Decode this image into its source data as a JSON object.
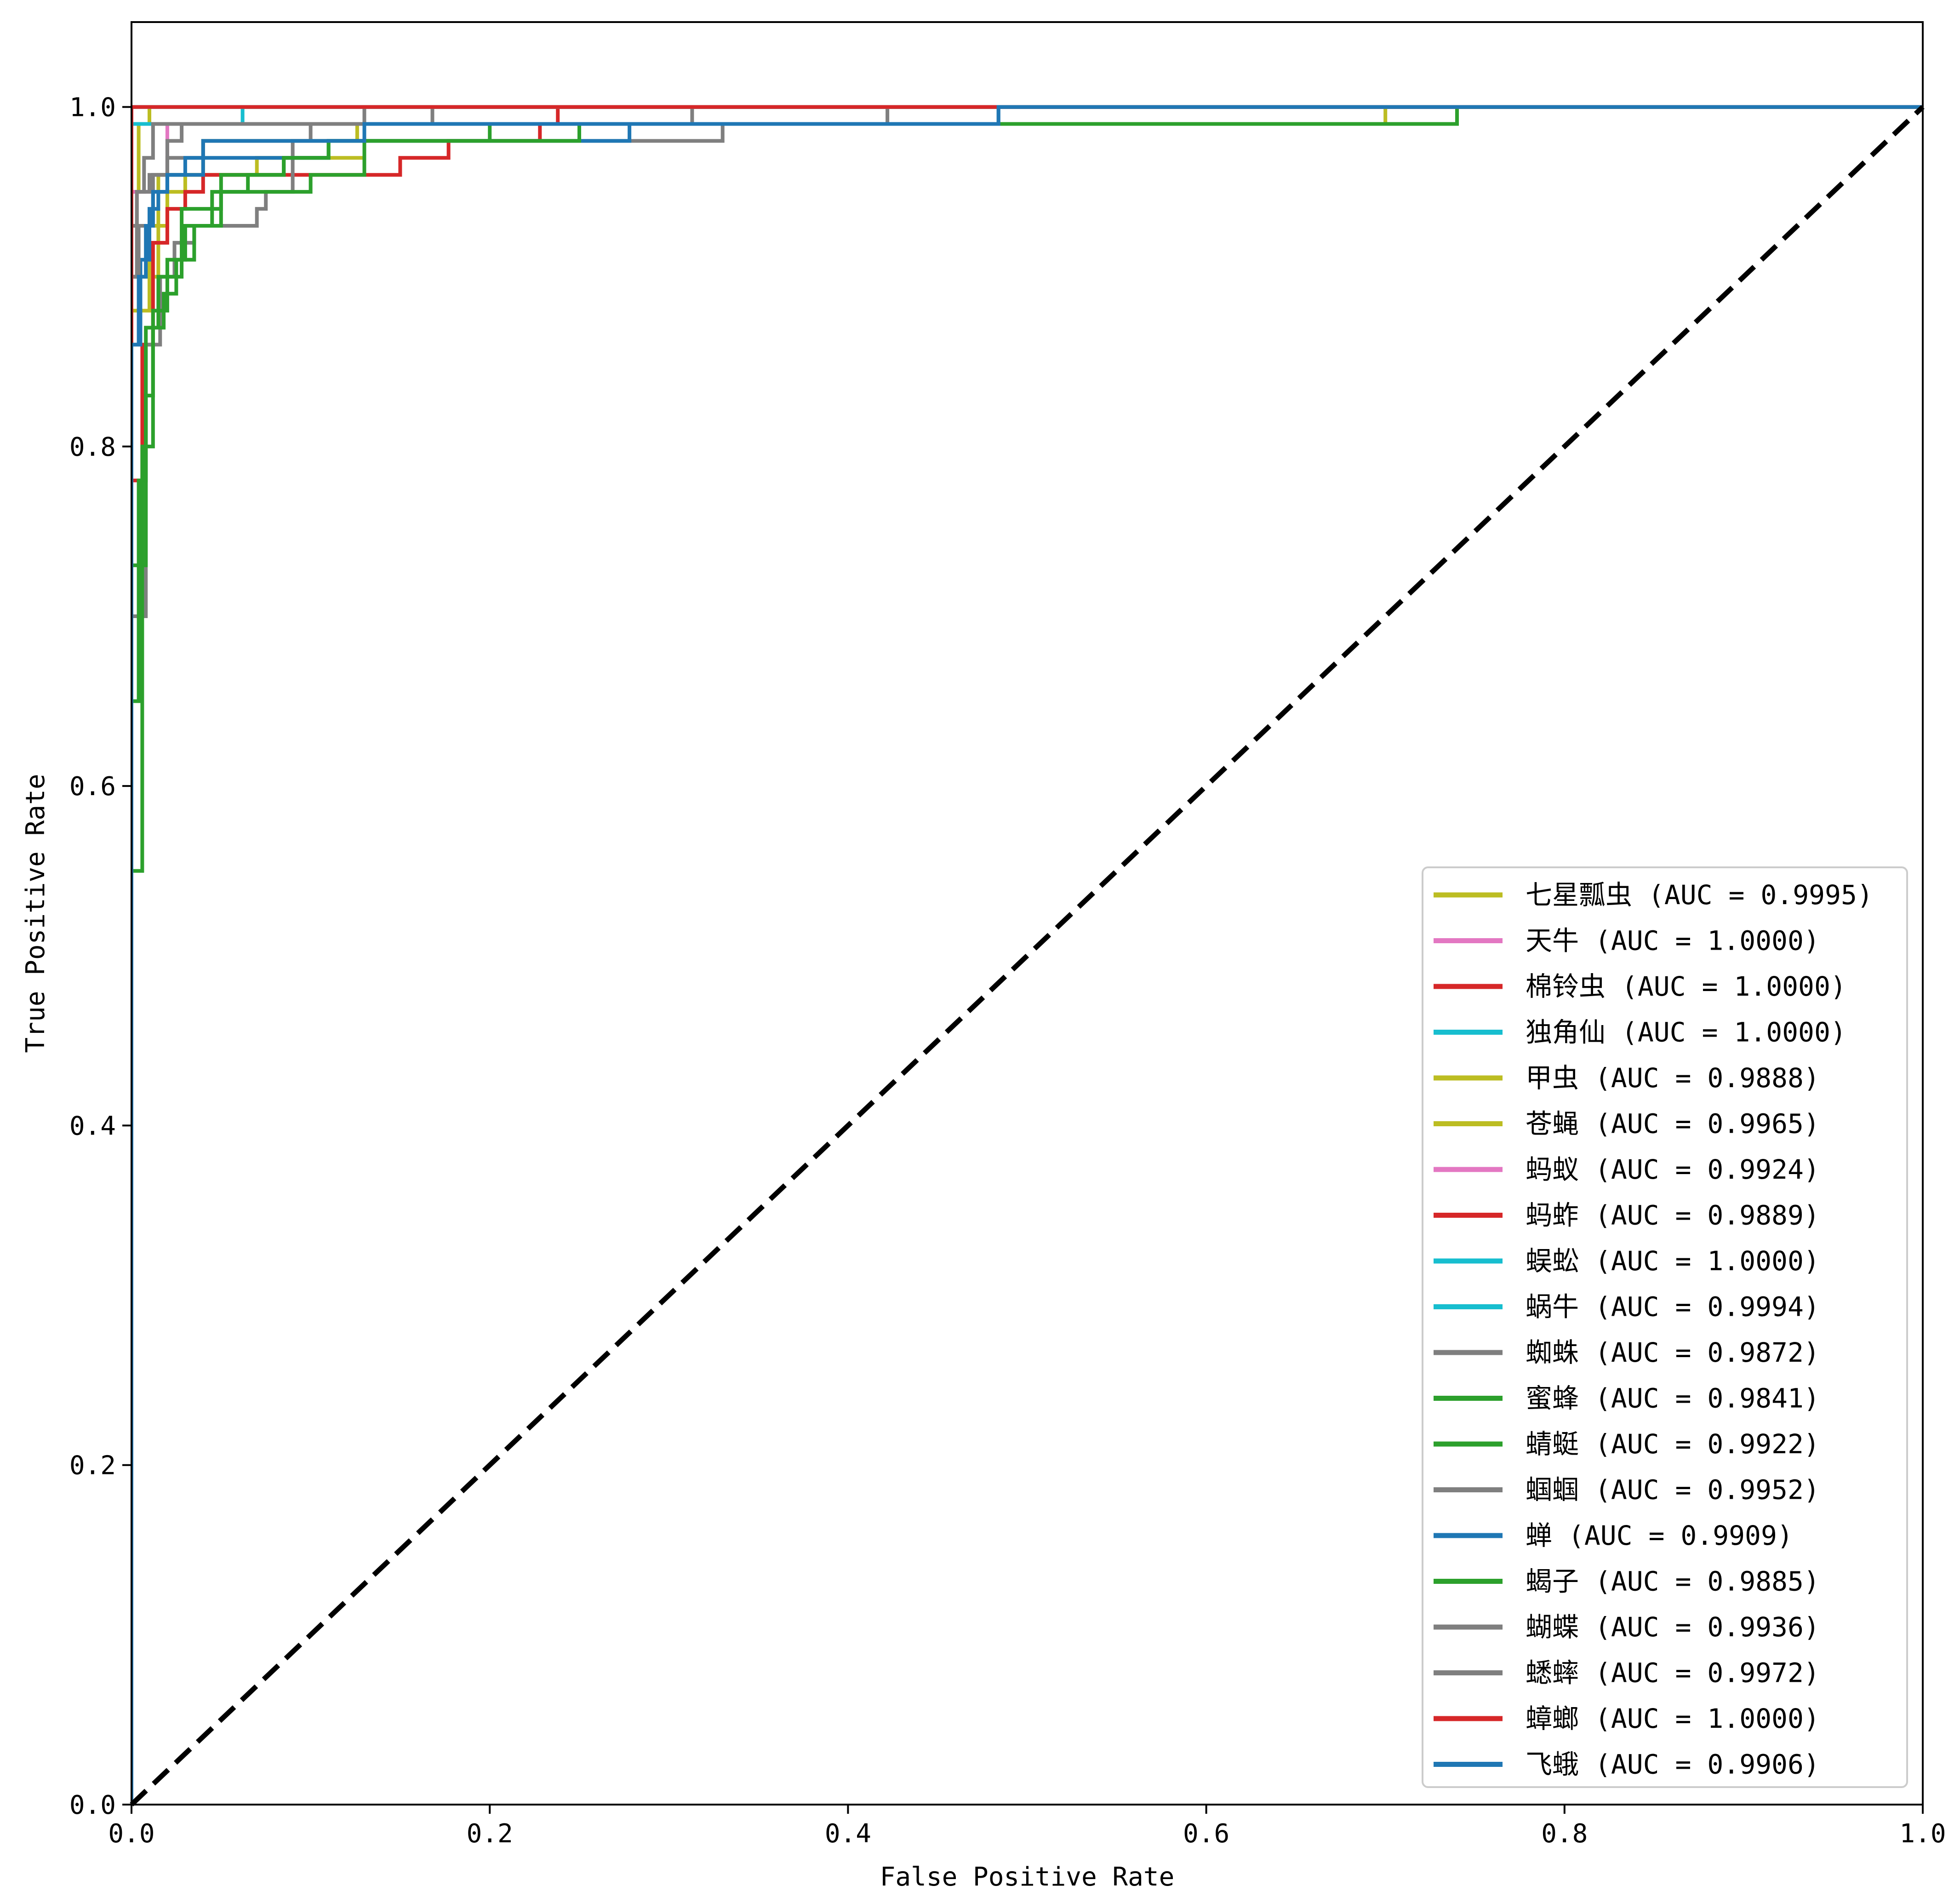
{
  "chart_data": {
    "type": "line",
    "title": "",
    "xlabel": "False Positive Rate",
    "ylabel": "True Positive Rate",
    "xlim": [
      0.0,
      1.0
    ],
    "ylim": [
      0.0,
      1.05
    ],
    "xticks": [
      "0.0",
      "0.2",
      "0.4",
      "0.6",
      "0.8",
      "1.0"
    ],
    "yticks": [
      "0.0",
      "0.2",
      "0.4",
      "0.6",
      "0.8",
      "1.0"
    ],
    "grid": false,
    "legend_position": "lower-right",
    "diagonal": {
      "x": [
        0,
        1
      ],
      "y": [
        0,
        1
      ],
      "style": "dashed",
      "color": "#000000"
    },
    "series": [
      {
        "name": "七星瓢虫 (AUC = 0.9995)",
        "color": "#bcbd22",
        "x": [
          0,
          0,
          0.004,
          0.004,
          0.01,
          0.01,
          1.0
        ],
        "y": [
          0,
          0.95,
          0.95,
          0.99,
          0.99,
          1.0,
          1.0
        ]
      },
      {
        "name": "天牛 (AUC = 1.0000)",
        "color": "#e377c2",
        "x": [
          0,
          0,
          1.0
        ],
        "y": [
          0,
          1.0,
          1.0
        ]
      },
      {
        "name": "棉铃虫 (AUC = 1.0000)",
        "color": "#d62728",
        "x": [
          0,
          0,
          1.0
        ],
        "y": [
          0,
          1.0,
          1.0
        ]
      },
      {
        "name": "独角仙 (AUC = 1.0000)",
        "color": "#17becf",
        "x": [
          0,
          0,
          1.0
        ],
        "y": [
          0,
          1.0,
          1.0
        ]
      },
      {
        "name": "甲虫 (AUC = 0.9888)",
        "color": "#bcbd22",
        "x": [
          0,
          0,
          0.01,
          0.01,
          0.02,
          0.02,
          0.03,
          0.03,
          0.07,
          0.07,
          0.13,
          0.13,
          0.74,
          0.74,
          1.0
        ],
        "y": [
          0,
          0.88,
          0.88,
          0.93,
          0.93,
          0.95,
          0.95,
          0.96,
          0.96,
          0.97,
          0.97,
          0.99,
          0.99,
          1.0,
          1.0
        ]
      },
      {
        "name": "苍蝇 (AUC = 0.9965)",
        "color": "#bcbd22",
        "x": [
          0,
          0,
          0.015,
          0.015,
          0.04,
          0.04,
          0.126,
          0.126,
          0.7,
          0.7,
          1.0
        ],
        "y": [
          0,
          0.9,
          0.9,
          0.96,
          0.96,
          0.98,
          0.98,
          0.99,
          0.99,
          1.0,
          1.0
        ]
      },
      {
        "name": "蚂蚁 (AUC = 0.9924)",
        "color": "#e377c2",
        "x": [
          0,
          0,
          0.02,
          0.02,
          0.74,
          0.74,
          1.0
        ],
        "y": [
          0,
          0.95,
          0.95,
          0.99,
          0.99,
          1.0,
          1.0
        ]
      },
      {
        "name": "蚂蚱 (AUC = 0.9889)",
        "color": "#d62728",
        "x": [
          0,
          0,
          0.006,
          0.006,
          0.012,
          0.012,
          0.02,
          0.02,
          0.03,
          0.03,
          0.04,
          0.04,
          0.15,
          0.15,
          0.177,
          0.177,
          0.228,
          0.228,
          0.238,
          0.238,
          1.0
        ],
        "y": [
          0,
          0.78,
          0.78,
          0.86,
          0.86,
          0.92,
          0.92,
          0.94,
          0.94,
          0.95,
          0.95,
          0.96,
          0.96,
          0.97,
          0.97,
          0.98,
          0.98,
          0.99,
          0.99,
          1.0,
          1.0
        ]
      },
      {
        "name": "蜈蚣 (AUC = 1.0000)",
        "color": "#17becf",
        "x": [
          0,
          0,
          1.0
        ],
        "y": [
          0,
          1.0,
          1.0
        ]
      },
      {
        "name": "蜗牛 (AUC = 0.9994)",
        "color": "#17becf",
        "x": [
          0,
          0,
          0.006,
          0.006,
          0.062,
          0.062,
          1.0
        ],
        "y": [
          0,
          0.99,
          0.99,
          0.99,
          0.99,
          1.0,
          1.0
        ]
      },
      {
        "name": "蜘蛛 (AUC = 0.9872)",
        "color": "#7f7f7f",
        "x": [
          0,
          0,
          0.008,
          0.008,
          0.016,
          0.016,
          0.024,
          0.024,
          0.035,
          0.035,
          0.07,
          0.07,
          0.075,
          0.075,
          0.09,
          0.09,
          0.33,
          0.33,
          0.422,
          0.422,
          1.0
        ],
        "y": [
          0,
          0.7,
          0.7,
          0.86,
          0.86,
          0.9,
          0.9,
          0.92,
          0.92,
          0.93,
          0.93,
          0.94,
          0.94,
          0.95,
          0.95,
          0.98,
          0.98,
          0.99,
          0.99,
          1.0,
          1.0
        ]
      },
      {
        "name": "蜜蜂 (AUC = 0.9841)",
        "color": "#2ca02c",
        "x": [
          0,
          0,
          0.004,
          0.004,
          0.008,
          0.008,
          0.012,
          0.012,
          0.018,
          0.018,
          0.025,
          0.025,
          0.035,
          0.035,
          0.045,
          0.045,
          0.1,
          0.1,
          0.13,
          0.13,
          0.555,
          0.555,
          0.74,
          0.74,
          1.0
        ],
        "y": [
          0,
          0.65,
          0.65,
          0.78,
          0.78,
          0.83,
          0.83,
          0.87,
          0.87,
          0.89,
          0.89,
          0.91,
          0.91,
          0.93,
          0.93,
          0.95,
          0.95,
          0.96,
          0.96,
          0.99,
          0.99,
          0.99,
          0.99,
          1.0,
          1.0
        ]
      },
      {
        "name": "蜻蜓 (AUC = 0.9922)",
        "color": "#2ca02c",
        "x": [
          0,
          0,
          0.008,
          0.008,
          0.015,
          0.015,
          0.028,
          0.028,
          0.05,
          0.05,
          0.085,
          0.085,
          0.11,
          0.11,
          0.2,
          0.2,
          0.48,
          0.48,
          0.74,
          0.74,
          1.0
        ],
        "y": [
          0,
          0.73,
          0.73,
          0.87,
          0.87,
          0.9,
          0.9,
          0.94,
          0.94,
          0.96,
          0.96,
          0.97,
          0.97,
          0.98,
          0.98,
          0.99,
          0.99,
          0.99,
          0.99,
          1.0,
          1.0
        ]
      },
      {
        "name": "蝈蝈 (AUC = 0.9952)",
        "color": "#7f7f7f",
        "x": [
          0,
          0,
          0.003,
          0.003,
          0.01,
          0.01,
          0.02,
          0.02,
          0.04,
          0.04,
          0.1,
          0.1,
          0.13,
          0.13,
          1.0
        ],
        "y": [
          0,
          0.9,
          0.9,
          0.95,
          0.95,
          0.96,
          0.96,
          0.97,
          0.97,
          0.98,
          0.98,
          0.99,
          0.99,
          1.0,
          1.0
        ]
      },
      {
        "name": "蝉 (AUC = 0.9909)",
        "color": "#1f77b4",
        "x": [
          0,
          0,
          0.005,
          0.005,
          0.01,
          0.01,
          0.015,
          0.015,
          0.02,
          0.02,
          0.04,
          0.04,
          0.075,
          0.075,
          0.11,
          0.11,
          0.13,
          0.13,
          0.278,
          0.278,
          0.484,
          0.484,
          1.0
        ],
        "y": [
          0,
          0.86,
          0.86,
          0.91,
          0.91,
          0.94,
          0.94,
          0.95,
          0.95,
          0.96,
          0.96,
          0.97,
          0.97,
          0.97,
          0.97,
          0.98,
          0.98,
          0.98,
          0.98,
          0.99,
          0.99,
          1.0,
          1.0
        ]
      },
      {
        "name": "蝎子 (AUC = 0.9885)",
        "color": "#2ca02c",
        "x": [
          0,
          0,
          0.006,
          0.006,
          0.012,
          0.012,
          0.02,
          0.02,
          0.03,
          0.03,
          0.05,
          0.05,
          0.065,
          0.065,
          0.085,
          0.085,
          0.11,
          0.11,
          0.25,
          0.25,
          0.74,
          0.74,
          1.0
        ],
        "y": [
          0,
          0.55,
          0.55,
          0.8,
          0.8,
          0.88,
          0.88,
          0.91,
          0.91,
          0.93,
          0.93,
          0.95,
          0.95,
          0.96,
          0.96,
          0.97,
          0.97,
          0.98,
          0.98,
          0.99,
          0.99,
          1.0,
          1.0
        ]
      },
      {
        "name": "蝴蝶 (AUC = 0.9936)",
        "color": "#7f7f7f",
        "x": [
          0,
          0,
          0.004,
          0.004,
          0.012,
          0.012,
          0.02,
          0.02,
          0.028,
          0.028,
          0.23,
          0.23,
          0.313,
          0.313,
          0.42,
          0.42,
          1.0
        ],
        "y": [
          0,
          0.9,
          0.9,
          0.93,
          0.93,
          0.96,
          0.96,
          0.98,
          0.98,
          0.99,
          0.99,
          0.99,
          0.99,
          1.0,
          1.0,
          1.0,
          1.0
        ]
      },
      {
        "name": "蟋蟀 (AUC = 0.9972)",
        "color": "#7f7f7f",
        "x": [
          0,
          0,
          0.003,
          0.003,
          0.007,
          0.007,
          0.012,
          0.012,
          0.168,
          0.168,
          1.0
        ],
        "y": [
          0,
          0.93,
          0.93,
          0.95,
          0.95,
          0.97,
          0.97,
          0.99,
          0.99,
          1.0,
          1.0
        ]
      },
      {
        "name": "蟑螂 (AUC = 1.0000)",
        "color": "#d62728",
        "x": [
          0,
          0,
          1.0
        ],
        "y": [
          0,
          1.0,
          1.0
        ]
      },
      {
        "name": "飞蛾 (AUC = 0.9906)",
        "color": "#1f77b4",
        "x": [
          0,
          0,
          0.004,
          0.004,
          0.008,
          0.008,
          0.012,
          0.012,
          0.02,
          0.02,
          0.03,
          0.03,
          0.04,
          0.04,
          0.13,
          0.13,
          0.278,
          0.278,
          0.484,
          0.484,
          1.0
        ],
        "y": [
          0,
          0.86,
          0.86,
          0.9,
          0.9,
          0.93,
          0.93,
          0.95,
          0.95,
          0.96,
          0.96,
          0.97,
          0.97,
          0.98,
          0.98,
          0.99,
          0.99,
          0.99,
          0.99,
          1.0,
          1.0
        ]
      }
    ]
  }
}
